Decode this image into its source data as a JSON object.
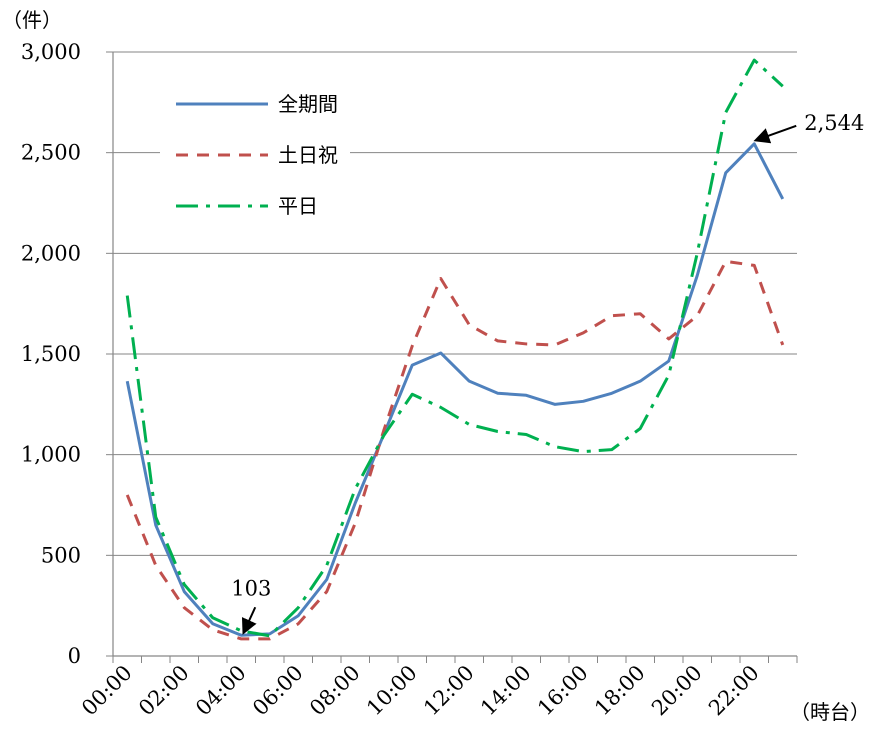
{
  "chart_data": {
    "type": "line",
    "y_unit": "（件）",
    "x_unit": "（時台）",
    "ylim": [
      0,
      3000
    ],
    "y_ticks": [
      "0",
      "500",
      "1,000",
      "1,500",
      "2,000",
      "2,500",
      "3,000"
    ],
    "y_tick_values": [
      0,
      500,
      1000,
      1500,
      2000,
      2500,
      3000
    ],
    "x_tick_labels": [
      "00:00",
      "02:00",
      "04:00",
      "06:00",
      "08:00",
      "10:00",
      "12:00",
      "14:00",
      "16:00",
      "18:00",
      "20:00",
      "22:00"
    ],
    "categories": [
      "00",
      "01",
      "02",
      "03",
      "04",
      "05",
      "06",
      "07",
      "08",
      "09",
      "10",
      "11",
      "12",
      "13",
      "14",
      "15",
      "16",
      "17",
      "18",
      "19",
      "20",
      "21",
      "22",
      "23"
    ],
    "grid": "horizontal",
    "legend_position": "top-left",
    "series": [
      {
        "name": "全期間",
        "color": "#4F81BD",
        "dash": "solid",
        "values": [
          1365,
          650,
          320,
          160,
          103,
          110,
          200,
          380,
          760,
          1100,
          1445,
          1505,
          1365,
          1305,
          1295,
          1250,
          1265,
          1305,
          1365,
          1465,
          1890,
          2400,
          2544,
          2270
        ]
      },
      {
        "name": "土日祝",
        "color": "#C0504D",
        "dash": "dashed",
        "values": [
          800,
          450,
          240,
          130,
          85,
          85,
          160,
          320,
          660,
          1120,
          1540,
          1875,
          1645,
          1565,
          1550,
          1545,
          1605,
          1690,
          1700,
          1575,
          1690,
          1960,
          1940,
          1545
        ]
      },
      {
        "name": "平日",
        "color": "#00B050",
        "dash": "dashdot",
        "values": [
          1790,
          690,
          355,
          190,
          125,
          100,
          240,
          450,
          830,
          1095,
          1300,
          1235,
          1150,
          1115,
          1100,
          1040,
          1015,
          1025,
          1130,
          1395,
          2000,
          2700,
          2960,
          2830
        ]
      }
    ],
    "annotations": [
      {
        "text": "103",
        "series": "全期間",
        "index": 4
      },
      {
        "text": "2,544",
        "series": "全期間",
        "index": 22
      }
    ]
  }
}
